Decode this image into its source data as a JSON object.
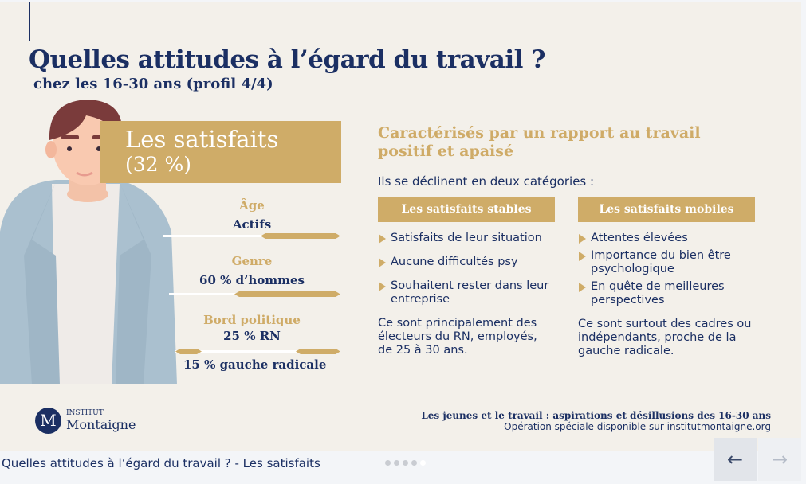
{
  "slide": {
    "title": "Quelles attitudes à l’égard du travail ?",
    "subtitle": "chez les 16-30 ans (profil 4/4)",
    "profile_name": "Les satisfaits",
    "profile_share": "(32 %)",
    "attributes": [
      {
        "label": "Âge",
        "value": "Actifs",
        "bar_fraction": 0.45
      },
      {
        "label": "Genre",
        "value": "60 % d’hommes",
        "bar_fraction": 0.6
      },
      {
        "label": "Bord politique",
        "value": "25 % RN",
        "value2": "15 % gauche radicale",
        "bar_fraction_right": 0.25,
        "bar_fraction_left": 0.15
      }
    ],
    "right_title_line1": "Caractérisés par un rapport au travail",
    "right_title_line2": "positif et apaisé",
    "intro": "Ils se déclinent en deux catégories :",
    "categories": [
      {
        "header": "Les satisfaits stables",
        "items": [
          "Satisfaits de leur situation",
          "Aucune difficultés psy",
          "Souhaitent rester dans leur entreprise"
        ],
        "summary": "Ce sont principalement des électeurs du RN, employés, de 25 à 30 ans."
      },
      {
        "header": "Les satisfaits mobiles",
        "items": [
          "Attentes élevées",
          "Importance du bien être psychologique",
          "En quête de meilleures perspectives"
        ],
        "summary": "Ce sont surtout des cadres ou indépendants, proche de la gauche radicale."
      }
    ],
    "logo": {
      "letter": "M",
      "line1": "INSTITUT",
      "line2": "Montaigne"
    },
    "footer_title": "Les jeunes et le travail : aspirations et désillusions des 16-30 ans",
    "footer_text": "Opération spéciale disponible sur",
    "footer_link": "institutmontaigne.org"
  },
  "viewer": {
    "caption": "Quelles attitudes à l’égard du travail ? - Les satisfaits",
    "dots_total": 5,
    "dots_active": 5,
    "prev_icon": "←",
    "next_icon": "→"
  },
  "colors": {
    "navy": "#1b2f63",
    "gold": "#cfac68",
    "background": "#f3f0ea"
  }
}
